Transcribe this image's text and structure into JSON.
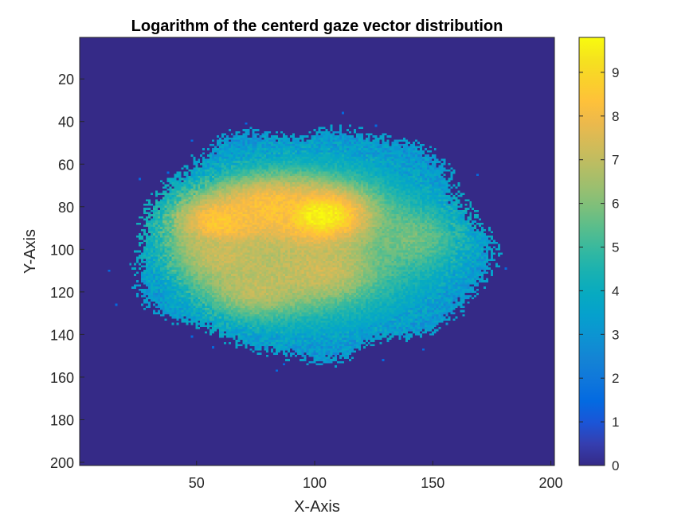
{
  "chart_data": {
    "type": "heatmap",
    "title": "Logarithm of the centerd gaze vector distribution",
    "xlabel": "X-Axis",
    "ylabel": "Y-Axis",
    "xlim": [
      0.5,
      201.5
    ],
    "ylim": [
      0.5,
      201.5
    ],
    "y_direction": "reverse",
    "x_ticks": [
      50,
      100,
      150,
      200
    ],
    "y_ticks": [
      20,
      40,
      60,
      80,
      100,
      120,
      140,
      160,
      180,
      200
    ],
    "colorbar": {
      "colormap": "parula",
      "range": [
        0,
        9.8
      ],
      "ticks": [
        0,
        1,
        2,
        3,
        4,
        5,
        6,
        7,
        8,
        9
      ]
    },
    "background_value": 0,
    "distribution": {
      "outer_region": {
        "center": [
          99,
          99
        ],
        "x_extent": [
          25,
          173
        ],
        "y_extent": [
          44,
          150
        ],
        "edge_value": 3.0
      },
      "peaks": [
        {
          "x": 103,
          "y": 84,
          "value": 9.8
        },
        {
          "x": 60,
          "y": 87,
          "value": 8.6
        },
        {
          "x": 80,
          "y": 80,
          "value": 8.3
        },
        {
          "x": 62,
          "y": 103,
          "value": 7.2
        },
        {
          "x": 75,
          "y": 118,
          "value": 7.0
        },
        {
          "x": 103,
          "y": 110,
          "value": 7.3
        },
        {
          "x": 140,
          "y": 95,
          "value": 5.8
        }
      ]
    }
  }
}
